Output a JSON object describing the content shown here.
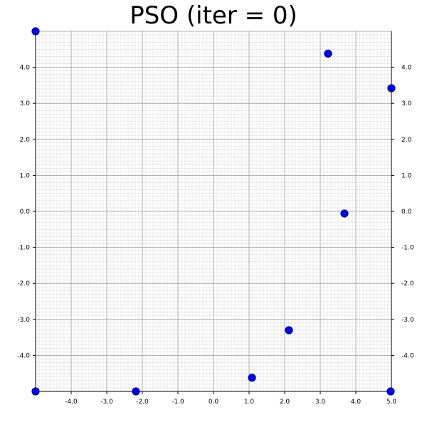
{
  "chart_data": {
    "type": "scatter",
    "title": "PSO (iter = 0)",
    "xlim": [
      -5,
      5
    ],
    "ylim": [
      -5,
      5
    ],
    "grid": true,
    "x_ticks": [
      -4.0,
      -3.0,
      -2.0,
      -1.0,
      0.0,
      1.0,
      2.0,
      3.0,
      4.0,
      5.0
    ],
    "y_ticks": [
      4.0,
      3.0,
      2.0,
      1.0,
      0.0,
      -1.0,
      -2.0,
      -3.0,
      -4.0
    ],
    "x_tick_labels": [
      "-4.0",
      "-3.0",
      "-2.0",
      "-1.0",
      "0.0",
      "1.0",
      "2.0",
      "3.0",
      "4.0",
      "5.0"
    ],
    "y_tick_labels": [
      "4.0",
      "3.0",
      "2.0",
      "1.0",
      "0.0",
      "-1.0",
      "-2.0",
      "-3.0",
      "-4.0"
    ],
    "points": [
      {
        "x": -5.0,
        "y": 5.0
      },
      {
        "x": 3.22,
        "y": 4.38
      },
      {
        "x": 5.0,
        "y": 3.42
      },
      {
        "x": 3.68,
        "y": -0.06
      },
      {
        "x": 2.12,
        "y": -3.3
      },
      {
        "x": 1.08,
        "y": -4.62
      },
      {
        "x": -2.18,
        "y": -5.0
      },
      {
        "x": -5.0,
        "y": -5.0
      },
      {
        "x": 4.98,
        "y": -5.0
      }
    ],
    "marker_color": "#0000ff",
    "marker_edge_color": "#000080"
  }
}
